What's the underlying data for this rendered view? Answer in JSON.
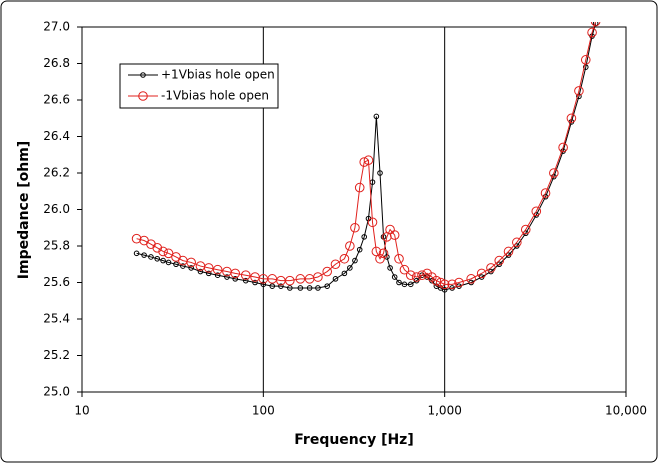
{
  "chart_data": {
    "type": "line",
    "x_label": "Frequency [Hz]",
    "y_label": "Impedance [ohm]",
    "xscale": "log",
    "grid": "x",
    "legend": "upper left",
    "xlim": [
      10,
      10000
    ],
    "xticks": [
      10,
      100,
      {
        "value": 1000,
        "label": "1,000"
      },
      {
        "value": 10000,
        "label": "10,000"
      }
    ],
    "ylim": [
      25.0,
      27.0
    ],
    "yticks": [
      {
        "value": 25.0,
        "label": "25.0"
      },
      25.2,
      25.4,
      25.6,
      25.8,
      {
        "value": 26.0,
        "label": "26.0"
      },
      26.2,
      26.4,
      26.6,
      26.8,
      {
        "value": 27.0,
        "label": "27.0"
      }
    ],
    "x": [
      20,
      22,
      24,
      26,
      28,
      30,
      33,
      36,
      40,
      45,
      50,
      56,
      63,
      70,
      80,
      90,
      100,
      112,
      125,
      140,
      160,
      180,
      200,
      225,
      250,
      280,
      300,
      320,
      340,
      360,
      380,
      400,
      420,
      440,
      460,
      480,
      500,
      530,
      560,
      600,
      650,
      700,
      750,
      800,
      850,
      900,
      950,
      1000,
      1100,
      1200,
      1400,
      1600,
      1800,
      2000,
      2250,
      2500,
      2800,
      3200,
      3600,
      4000,
      4500,
      5000,
      5500,
      6000,
      6500,
      6800
    ],
    "series": [
      {
        "name": "+1Vbias hole open",
        "color": "#000000",
        "marker_size": 2.3,
        "values": [
          25.76,
          25.75,
          25.74,
          25.73,
          25.72,
          25.71,
          25.7,
          25.69,
          25.68,
          25.66,
          25.65,
          25.64,
          25.63,
          25.62,
          25.61,
          25.6,
          25.59,
          25.58,
          25.58,
          25.57,
          25.57,
          25.57,
          25.57,
          25.58,
          25.62,
          25.65,
          25.68,
          25.72,
          25.78,
          25.85,
          25.95,
          26.15,
          26.51,
          26.2,
          25.85,
          25.74,
          25.68,
          25.63,
          25.6,
          25.59,
          25.59,
          25.61,
          25.64,
          25.63,
          25.61,
          25.58,
          25.57,
          25.56,
          25.57,
          25.58,
          25.6,
          25.63,
          25.66,
          25.7,
          25.75,
          25.8,
          25.87,
          25.97,
          26.07,
          26.18,
          26.32,
          26.48,
          26.62,
          26.78,
          26.95,
          27.02
        ]
      },
      {
        "name": "-1Vbias hole open",
        "color": "#e0201c",
        "marker_size": 4.3,
        "values": [
          25.84,
          25.83,
          25.81,
          25.79,
          25.77,
          25.76,
          25.74,
          25.72,
          25.71,
          25.69,
          25.68,
          25.67,
          25.66,
          25.65,
          25.64,
          25.63,
          25.62,
          25.62,
          25.61,
          25.61,
          25.62,
          25.62,
          25.63,
          25.66,
          25.7,
          25.73,
          25.8,
          25.9,
          26.12,
          26.26,
          26.27,
          25.93,
          25.77,
          25.73,
          25.76,
          25.85,
          25.89,
          25.86,
          25.73,
          25.67,
          25.64,
          25.63,
          25.64,
          25.65,
          25.63,
          25.61,
          25.6,
          25.59,
          25.59,
          25.6,
          25.62,
          25.65,
          25.68,
          25.72,
          25.77,
          25.82,
          25.89,
          25.99,
          26.09,
          26.2,
          26.34,
          26.5,
          26.65,
          26.82,
          26.97,
          27.03
        ]
      }
    ]
  }
}
